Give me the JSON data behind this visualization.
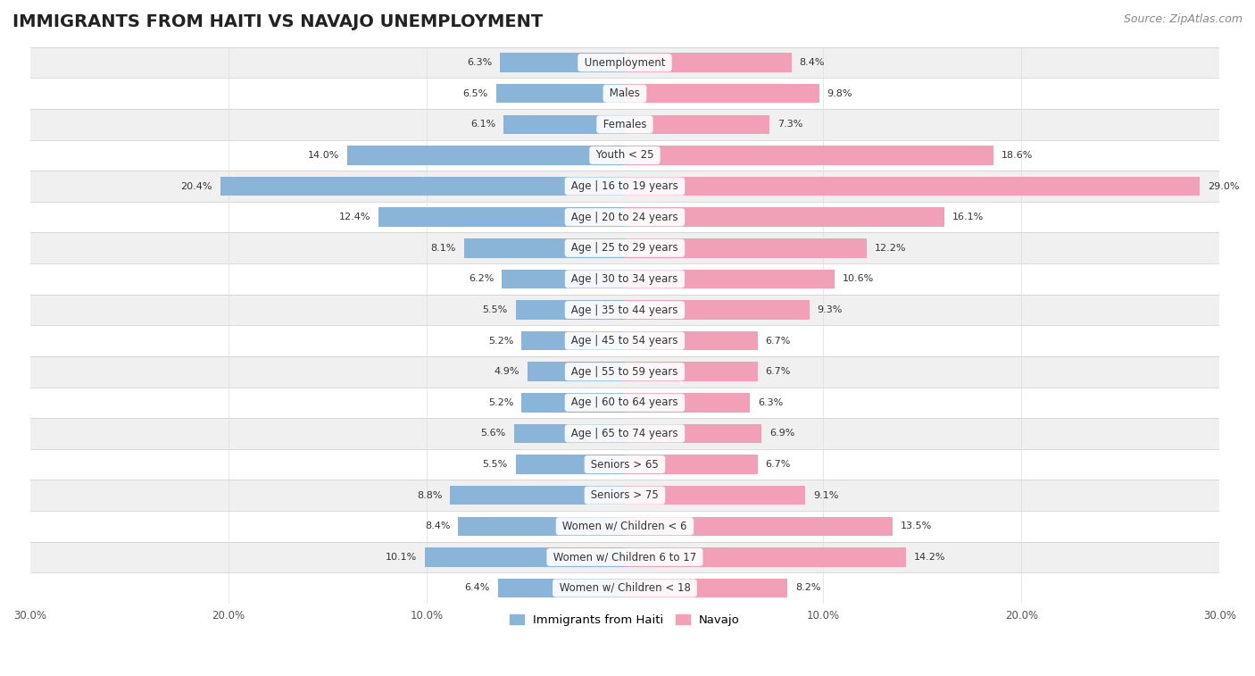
{
  "title": "IMMIGRANTS FROM HAITI VS NAVAJO UNEMPLOYMENT",
  "source": "Source: ZipAtlas.com",
  "categories": [
    "Unemployment",
    "Males",
    "Females",
    "Youth < 25",
    "Age | 16 to 19 years",
    "Age | 20 to 24 years",
    "Age | 25 to 29 years",
    "Age | 30 to 34 years",
    "Age | 35 to 44 years",
    "Age | 45 to 54 years",
    "Age | 55 to 59 years",
    "Age | 60 to 64 years",
    "Age | 65 to 74 years",
    "Seniors > 65",
    "Seniors > 75",
    "Women w/ Children < 6",
    "Women w/ Children 6 to 17",
    "Women w/ Children < 18"
  ],
  "haiti_values": [
    6.3,
    6.5,
    6.1,
    14.0,
    20.4,
    12.4,
    8.1,
    6.2,
    5.5,
    5.2,
    4.9,
    5.2,
    5.6,
    5.5,
    8.8,
    8.4,
    10.1,
    6.4
  ],
  "navajo_values": [
    8.4,
    9.8,
    7.3,
    18.6,
    29.0,
    16.1,
    12.2,
    10.6,
    9.3,
    6.7,
    6.7,
    6.3,
    6.9,
    6.7,
    9.1,
    13.5,
    14.2,
    8.2
  ],
  "haiti_color": "#8ab4d8",
  "navajo_color": "#f2a0b8",
  "background_color": "#ffffff",
  "row_even_color": "#f0f0f0",
  "row_odd_color": "#ffffff",
  "xlim": 30.0,
  "legend_haiti": "Immigrants from Haiti",
  "legend_navajo": "Navajo",
  "title_fontsize": 14,
  "source_fontsize": 9,
  "label_fontsize": 8.5,
  "value_fontsize": 8.0,
  "bar_height": 0.62
}
